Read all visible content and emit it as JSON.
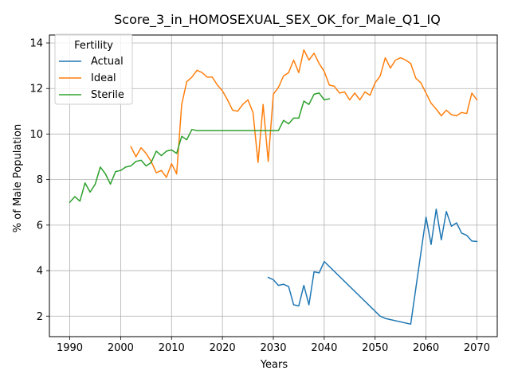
{
  "chart_data": {
    "type": "line",
    "title": "Score_3_in_HOMOSEXUAL_SEX_OK_for_Male_Q1_IQ",
    "xlabel": "Years",
    "ylabel": "% of Male Population",
    "xlim": [
      1986,
      2074
    ],
    "ylim": [
      1.1,
      14.35
    ],
    "xticks": [
      1990,
      2000,
      2010,
      2020,
      2030,
      2040,
      2050,
      2060,
      2070
    ],
    "yticks": [
      2,
      4,
      6,
      8,
      10,
      12,
      14
    ],
    "grid": true,
    "legend": {
      "title": "Fertility",
      "position": "top-left"
    },
    "series": [
      {
        "name": "Actual",
        "color": "#1f77b4",
        "x": [
          2029,
          2030,
          2031,
          2032,
          2033,
          2034,
          2035,
          2036,
          2037,
          2038,
          2039,
          2040,
          2051,
          2052,
          2057,
          2060,
          2061,
          2062,
          2063,
          2064,
          2065,
          2066,
          2067,
          2068,
          2069,
          2070
        ],
        "y": [
          3.7,
          3.6,
          3.35,
          3.4,
          3.3,
          2.5,
          2.45,
          3.35,
          2.5,
          3.95,
          3.9,
          4.4,
          2.0,
          1.9,
          1.65,
          6.35,
          5.15,
          6.7,
          5.35,
          6.6,
          5.95,
          6.1,
          5.65,
          5.55,
          5.3,
          5.28
        ]
      },
      {
        "name": "Ideal",
        "color": "#ff7f0e",
        "x": [
          2002,
          2003,
          2004,
          2005,
          2006,
          2007,
          2008,
          2009,
          2010,
          2011,
          2012,
          2013,
          2014,
          2015,
          2016,
          2017,
          2018,
          2019,
          2020,
          2021,
          2022,
          2023,
          2024,
          2025,
          2026,
          2027,
          2028,
          2029,
          2030,
          2031,
          2032,
          2033,
          2034,
          2035,
          2036,
          2037,
          2038,
          2039,
          2040,
          2041,
          2042,
          2043,
          2044,
          2045,
          2046,
          2047,
          2048,
          2049,
          2050,
          2051,
          2052,
          2053,
          2054,
          2055,
          2056,
          2057,
          2058,
          2059,
          2060,
          2061,
          2062,
          2063,
          2064,
          2065,
          2066,
          2067,
          2068,
          2069,
          2070
        ],
        "y": [
          9.45,
          9.0,
          9.4,
          9.15,
          8.8,
          8.3,
          8.4,
          8.1,
          8.7,
          8.25,
          11.3,
          12.3,
          12.5,
          12.8,
          12.7,
          12.5,
          12.5,
          12.15,
          11.9,
          11.5,
          11.05,
          11.0,
          11.3,
          11.5,
          10.95,
          8.75,
          11.3,
          8.8,
          11.75,
          12.05,
          12.55,
          12.7,
          13.25,
          12.7,
          13.7,
          13.25,
          13.55,
          13.1,
          12.75,
          12.15,
          12.1,
          11.8,
          11.85,
          11.5,
          11.8,
          11.5,
          11.85,
          11.7,
          12.25,
          12.55,
          13.35,
          12.9,
          13.25,
          13.35,
          13.25,
          13.1,
          12.45,
          12.25,
          11.8,
          11.35,
          11.1,
          10.8,
          11.05,
          10.85,
          10.8,
          10.95,
          10.9,
          11.8,
          11.5
        ]
      },
      {
        "name": "Sterile",
        "color": "#2ca02c",
        "x": [
          1990,
          1991,
          1992,
          1993,
          1994,
          1995,
          1996,
          1997,
          1998,
          1999,
          2000,
          2001,
          2002,
          2003,
          2004,
          2005,
          2006,
          2007,
          2008,
          2009,
          2010,
          2011,
          2012,
          2013,
          2014,
          2015,
          2020,
          2025,
          2030,
          2031,
          2032,
          2033,
          2034,
          2035,
          2036,
          2037,
          2038,
          2039,
          2040,
          2041
        ],
        "y": [
          7.0,
          7.25,
          7.05,
          7.85,
          7.45,
          7.8,
          8.55,
          8.25,
          7.8,
          8.35,
          8.4,
          8.55,
          8.6,
          8.8,
          8.85,
          8.6,
          8.75,
          9.25,
          9.05,
          9.25,
          9.3,
          9.15,
          9.9,
          9.75,
          10.2,
          10.15,
          10.15,
          10.15,
          10.15,
          10.15,
          10.6,
          10.45,
          10.7,
          10.7,
          11.45,
          11.3,
          11.75,
          11.8,
          11.5,
          11.55
        ]
      }
    ]
  }
}
